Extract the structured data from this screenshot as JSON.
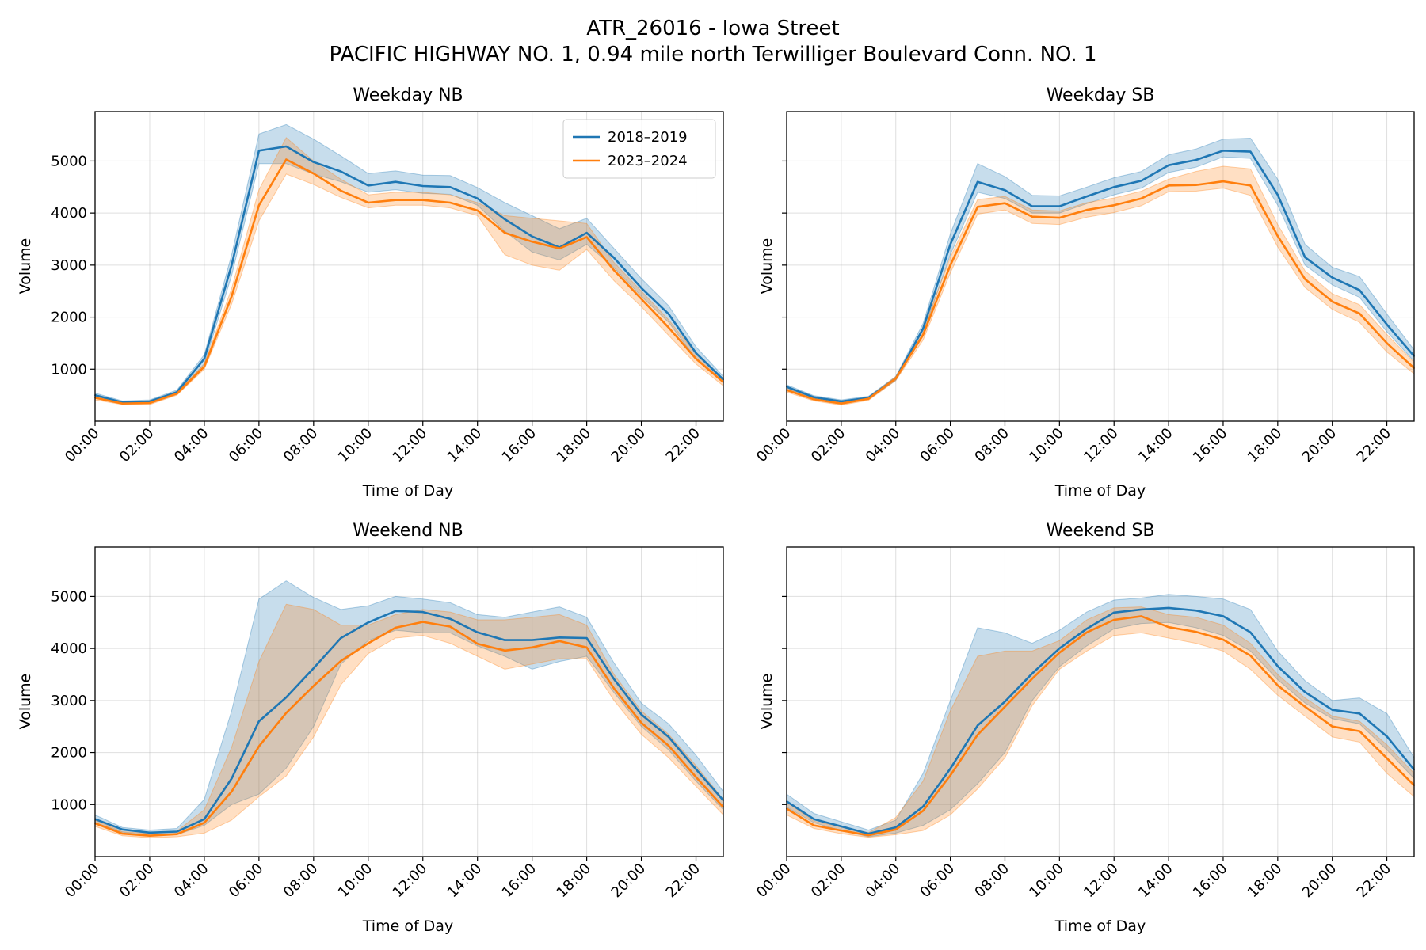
{
  "figure": {
    "title_line1": "ATR_26016 - Iowa Street",
    "title_line2": "PACIFIC HIGHWAY NO. 1,  0.94 mile north Terwilliger Boulevard Conn. NO. 1"
  },
  "colors": {
    "series_2018_2019": "#1f77b4",
    "series_2023_2024": "#ff7f0e"
  },
  "chart_data": [
    {
      "type": "line",
      "title": "Weekday NB",
      "xlabel": "Time of Day",
      "ylabel": "Volume",
      "x": [
        "00:00",
        "01:00",
        "02:00",
        "03:00",
        "04:00",
        "05:00",
        "06:00",
        "07:00",
        "08:00",
        "09:00",
        "10:00",
        "11:00",
        "12:00",
        "13:00",
        "14:00",
        "15:00",
        "16:00",
        "17:00",
        "18:00",
        "19:00",
        "20:00",
        "21:00",
        "22:00",
        "23:00"
      ],
      "xticks": [
        "00:00",
        "02:00",
        "04:00",
        "06:00",
        "08:00",
        "10:00",
        "12:00",
        "14:00",
        "16:00",
        "18:00",
        "20:00",
        "22:00"
      ],
      "ylim": [
        0,
        5950
      ],
      "yticks": [
        1000,
        2000,
        3000,
        4000,
        5000
      ],
      "grid": true,
      "legend": "top-right",
      "series": [
        {
          "name": "2018–2019",
          "color": "#1f77b4",
          "values": [
            500,
            360,
            380,
            560,
            1200,
            3000,
            5200,
            5280,
            4980,
            4800,
            4530,
            4600,
            4520,
            4500,
            4280,
            3880,
            3550,
            3340,
            3620,
            3140,
            2560,
            2060,
            1310,
            800
          ],
          "lower": [
            460,
            330,
            350,
            520,
            1100,
            2800,
            4950,
            4950,
            4750,
            4600,
            4400,
            4450,
            4380,
            4360,
            4150,
            3650,
            3250,
            3100,
            3400,
            2950,
            2400,
            1900,
            1200,
            740
          ],
          "upper": [
            540,
            390,
            410,
            600,
            1280,
            3200,
            5520,
            5700,
            5420,
            5100,
            4760,
            4810,
            4730,
            4720,
            4490,
            4200,
            3950,
            3700,
            3900,
            3320,
            2740,
            2220,
            1430,
            860
          ]
        },
        {
          "name": "2023–2024",
          "color": "#ff7f0e",
          "values": [
            450,
            340,
            350,
            530,
            1050,
            2400,
            4150,
            5030,
            4760,
            4430,
            4200,
            4250,
            4250,
            4200,
            4050,
            3620,
            3450,
            3320,
            3540,
            2900,
            2350,
            1800,
            1200,
            750
          ],
          "lower": [
            410,
            320,
            320,
            500,
            1000,
            2250,
            3850,
            4750,
            4550,
            4300,
            4100,
            4150,
            4150,
            4100,
            3950,
            3200,
            3000,
            2900,
            3300,
            2700,
            2200,
            1650,
            1100,
            680
          ],
          "upper": [
            490,
            370,
            380,
            560,
            1100,
            2550,
            4450,
            5450,
            5000,
            4650,
            4350,
            4400,
            4400,
            4350,
            4200,
            3950,
            3900,
            3850,
            3800,
            3050,
            2500,
            1950,
            1300,
            820
          ]
        }
      ]
    },
    {
      "type": "line",
      "title": "Weekday SB",
      "xlabel": "Time of Day",
      "ylabel": "Volume",
      "x": [
        "00:00",
        "01:00",
        "02:00",
        "03:00",
        "04:00",
        "05:00",
        "06:00",
        "07:00",
        "08:00",
        "09:00",
        "10:00",
        "11:00",
        "12:00",
        "13:00",
        "14:00",
        "15:00",
        "16:00",
        "17:00",
        "18:00",
        "19:00",
        "20:00",
        "21:00",
        "22:00",
        "23:00"
      ],
      "xticks": [
        "00:00",
        "02:00",
        "04:00",
        "06:00",
        "08:00",
        "10:00",
        "12:00",
        "14:00",
        "16:00",
        "18:00",
        "20:00",
        "22:00"
      ],
      "ylim": [
        0,
        5950
      ],
      "yticks": [
        1000,
        2000,
        3000,
        4000,
        5000
      ],
      "grid": true,
      "series": [
        {
          "name": "2018–2019",
          "color": "#1f77b4",
          "values": [
            660,
            460,
            380,
            450,
            820,
            1780,
            3400,
            4600,
            4440,
            4130,
            4130,
            4320,
            4500,
            4620,
            4920,
            5020,
            5200,
            5180,
            4350,
            3150,
            2760,
            2520,
            1860,
            1250
          ],
          "lower": [
            620,
            430,
            350,
            420,
            780,
            1680,
            3200,
            4400,
            4280,
            4000,
            4000,
            4180,
            4350,
            4480,
            4780,
            4880,
            5080,
            5050,
            4150,
            3000,
            2620,
            2380,
            1720,
            1150
          ],
          "upper": [
            700,
            490,
            410,
            480,
            860,
            1880,
            3600,
            4950,
            4700,
            4340,
            4330,
            4500,
            4680,
            4800,
            5120,
            5230,
            5420,
            5440,
            4650,
            3400,
            2960,
            2780,
            2060,
            1370
          ]
        },
        {
          "name": "2023–2024",
          "color": "#ff7f0e",
          "values": [
            600,
            420,
            340,
            430,
            820,
            1660,
            3000,
            4120,
            4190,
            3930,
            3910,
            4060,
            4150,
            4280,
            4530,
            4540,
            4610,
            4530,
            3560,
            2730,
            2300,
            2070,
            1500,
            1020
          ],
          "lower": [
            560,
            390,
            310,
            400,
            780,
            1560,
            2850,
            3980,
            4060,
            3800,
            3780,
            3920,
            4010,
            4140,
            4410,
            4420,
            4480,
            4340,
            3350,
            2570,
            2150,
            1900,
            1330,
            910
          ],
          "upper": [
            640,
            450,
            370,
            460,
            860,
            1760,
            3150,
            4260,
            4320,
            4060,
            4040,
            4200,
            4290,
            4420,
            4650,
            4800,
            4900,
            4850,
            3780,
            2890,
            2450,
            2240,
            1670,
            1130
          ]
        }
      ]
    },
    {
      "type": "line",
      "title": "Weekend NB",
      "xlabel": "Time of Day",
      "ylabel": "Volume",
      "x": [
        "00:00",
        "01:00",
        "02:00",
        "03:00",
        "04:00",
        "05:00",
        "06:00",
        "07:00",
        "08:00",
        "09:00",
        "10:00",
        "11:00",
        "12:00",
        "13:00",
        "14:00",
        "15:00",
        "16:00",
        "17:00",
        "18:00",
        "19:00",
        "20:00",
        "21:00",
        "22:00",
        "23:00"
      ],
      "xticks": [
        "00:00",
        "02:00",
        "04:00",
        "06:00",
        "08:00",
        "10:00",
        "12:00",
        "14:00",
        "16:00",
        "18:00",
        "20:00",
        "22:00"
      ],
      "ylim": [
        0,
        5950
      ],
      "yticks": [
        1000,
        2000,
        3000,
        4000,
        5000
      ],
      "grid": true,
      "series": [
        {
          "name": "2018–2019",
          "color": "#1f77b4",
          "values": [
            720,
            520,
            460,
            480,
            720,
            1500,
            2600,
            3060,
            3620,
            4200,
            4500,
            4720,
            4700,
            4570,
            4310,
            4160,
            4160,
            4210,
            4200,
            3410,
            2730,
            2300,
            1680,
            1080
          ],
          "lower": [
            650,
            470,
            400,
            420,
            600,
            1000,
            1200,
            1700,
            2500,
            3700,
            4150,
            4350,
            4300,
            4300,
            4050,
            3850,
            3600,
            3750,
            3850,
            3150,
            2500,
            2050,
            1450,
            900
          ],
          "upper": [
            800,
            560,
            510,
            540,
            1100,
            2800,
            4950,
            5300,
            4980,
            4750,
            4820,
            5000,
            4950,
            4880,
            4650,
            4600,
            4700,
            4800,
            4600,
            3720,
            2950,
            2550,
            1950,
            1250
          ]
        },
        {
          "name": "2023–2024",
          "color": "#ff7f0e",
          "values": [
            640,
            440,
            400,
            430,
            650,
            1250,
            2120,
            2760,
            3280,
            3760,
            4100,
            4400,
            4510,
            4420,
            4090,
            3960,
            4020,
            4140,
            4020,
            3230,
            2570,
            2130,
            1530,
            950
          ],
          "lower": [
            580,
            400,
            360,
            380,
            450,
            700,
            1150,
            1550,
            2300,
            3300,
            3900,
            4200,
            4250,
            4100,
            3850,
            3600,
            3700,
            3800,
            3800,
            3000,
            2350,
            1900,
            1350,
            800
          ],
          "upper": [
            700,
            480,
            440,
            490,
            900,
            2100,
            3750,
            4850,
            4750,
            4450,
            4450,
            4650,
            4750,
            4700,
            4550,
            4550,
            4600,
            4650,
            4450,
            3500,
            2800,
            2350,
            1750,
            1100
          ]
        }
      ]
    },
    {
      "type": "line",
      "title": "Weekend SB",
      "xlabel": "Time of Day",
      "ylabel": "Volume",
      "x": [
        "00:00",
        "01:00",
        "02:00",
        "03:00",
        "04:00",
        "05:00",
        "06:00",
        "07:00",
        "08:00",
        "09:00",
        "10:00",
        "11:00",
        "12:00",
        "13:00",
        "14:00",
        "15:00",
        "16:00",
        "17:00",
        "18:00",
        "19:00",
        "20:00",
        "21:00",
        "22:00",
        "23:00"
      ],
      "xticks": [
        "00:00",
        "02:00",
        "04:00",
        "06:00",
        "08:00",
        "10:00",
        "12:00",
        "14:00",
        "16:00",
        "18:00",
        "20:00",
        "22:00"
      ],
      "ylim": [
        0,
        5950
      ],
      "yticks": [
        1000,
        2000,
        3000,
        4000,
        5000
      ],
      "grid": true,
      "series": [
        {
          "name": "2018–2019",
          "color": "#1f77b4",
          "values": [
            1060,
            720,
            580,
            440,
            560,
            960,
            1690,
            2520,
            2980,
            3520,
            4000,
            4380,
            4690,
            4750,
            4780,
            4730,
            4620,
            4310,
            3660,
            3160,
            2820,
            2750,
            2310,
            1670
          ],
          "lower": [
            950,
            650,
            500,
            380,
            450,
            600,
            900,
            1400,
            2000,
            3000,
            3650,
            4050,
            4380,
            4480,
            4500,
            4400,
            4250,
            3950,
            3400,
            2950,
            2650,
            2550,
            2050,
            1500
          ],
          "upper": [
            1200,
            830,
            670,
            510,
            700,
            1600,
            3000,
            4400,
            4300,
            4100,
            4350,
            4700,
            4930,
            4970,
            5040,
            5000,
            4950,
            4750,
            3950,
            3380,
            3000,
            3050,
            2750,
            1900
          ]
        },
        {
          "name": "2023–2024",
          "color": "#ff7f0e",
          "values": [
            920,
            600,
            500,
            410,
            520,
            880,
            1560,
            2340,
            2880,
            3420,
            3920,
            4310,
            4550,
            4620,
            4410,
            4320,
            4170,
            3860,
            3290,
            2880,
            2500,
            2410,
            1890,
            1370
          ],
          "lower": [
            800,
            540,
            440,
            370,
            420,
            500,
            800,
            1300,
            1900,
            2900,
            3600,
            3950,
            4250,
            4300,
            4200,
            4100,
            3950,
            3600,
            3100,
            2700,
            2300,
            2200,
            1600,
            1150
          ],
          "upper": [
            1050,
            680,
            570,
            460,
            750,
            1450,
            2800,
            3850,
            3950,
            3950,
            4150,
            4550,
            4780,
            4800,
            4650,
            4600,
            4450,
            4100,
            3500,
            3050,
            2700,
            2600,
            2150,
            1600
          ]
        }
      ]
    }
  ]
}
